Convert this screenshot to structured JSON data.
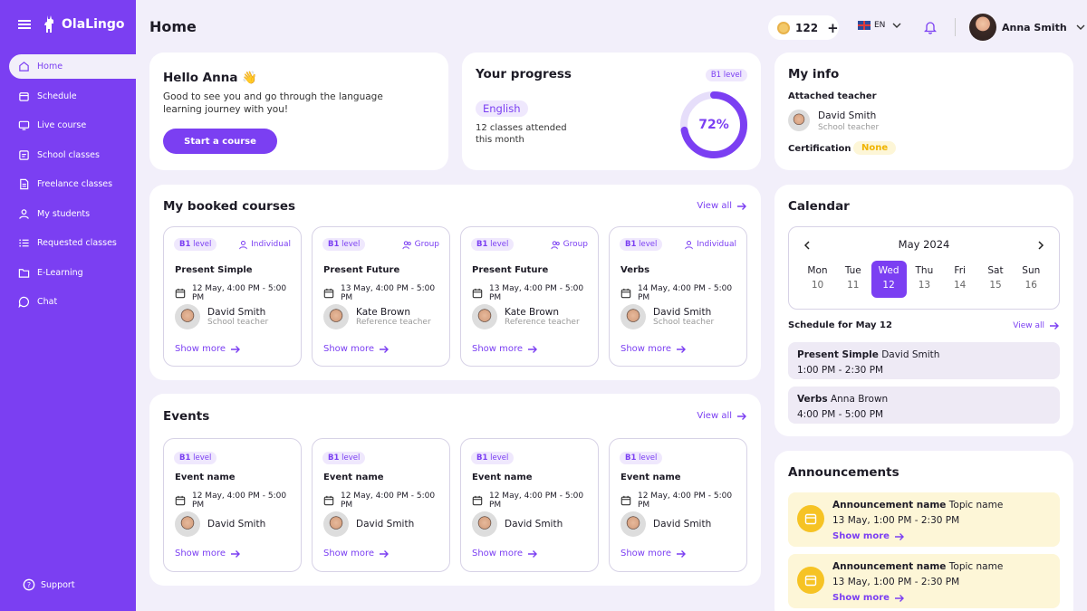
{
  "app": {
    "logo": "OlaLingo",
    "page_title": "Home"
  },
  "sidebar": {
    "items": [
      {
        "label": "Home"
      },
      {
        "label": "Schedule"
      },
      {
        "label": "Live course"
      },
      {
        "label": "School classes"
      },
      {
        "label": "Freelance classes"
      },
      {
        "label": "My students"
      },
      {
        "label": "Requested classes"
      },
      {
        "label": "E-Learning"
      },
      {
        "label": "Chat"
      }
    ],
    "support": "Support"
  },
  "topbar": {
    "coins": "122",
    "plus": "+",
    "language": "EN",
    "user_name": "Anna Smith"
  },
  "hello": {
    "title": "Hello Anna 👋",
    "text": "Good to see you and go through the language learning journey with you!",
    "button": "Start a course"
  },
  "progress": {
    "title": "Your progress",
    "level": "B1 level",
    "language": "English",
    "classes": "12 classes attended this month",
    "percent_label": "72%",
    "percent": 0.72
  },
  "myinfo": {
    "title": "My info",
    "attached_label": "Attached teacher",
    "teacher_name": "David Smith",
    "teacher_role": "School teacher",
    "cert_label": "Certification",
    "cert_value": "None"
  },
  "booked": {
    "title": "My booked courses",
    "view_all": "View all",
    "courses": [
      {
        "level": "B1",
        "level_suffix": "level",
        "type": "Individual",
        "title": "Present Simple",
        "date": "12 May, 4:00 PM - 5:00 PM",
        "name": "David Smith",
        "role": "School teacher",
        "more": "Show more"
      },
      {
        "level": "B1",
        "level_suffix": "level",
        "type": "Group",
        "title": "Present Future",
        "date": "13 May, 4:00 PM - 5:00 PM",
        "name": "Kate Brown",
        "role": "Reference teacher",
        "more": "Show more"
      },
      {
        "level": "B1",
        "level_suffix": "level",
        "type": "Group",
        "title": "Present Future",
        "date": "13 May, 4:00 PM - 5:00 PM",
        "name": "Kate Brown",
        "role": "Reference teacher",
        "more": "Show more"
      },
      {
        "level": "B1",
        "level_suffix": "level",
        "type": "Individual",
        "title": "Verbs",
        "date": "14 May, 4:00 PM - 5:00 PM",
        "name": "David Smith",
        "role": "School teacher",
        "more": "Show more"
      }
    ]
  },
  "events": {
    "title": "Events",
    "view_all": "View all",
    "items": [
      {
        "level": "B1",
        "level_suffix": "level",
        "title": "Event name",
        "date": "12 May, 4:00 PM - 5:00 PM",
        "name": "David Smith",
        "more": "Show more"
      },
      {
        "level": "B1",
        "level_suffix": "level",
        "title": "Event name",
        "date": "12 May, 4:00 PM - 5:00 PM",
        "name": "David Smith",
        "more": "Show more"
      },
      {
        "level": "B1",
        "level_suffix": "level",
        "title": "Event name",
        "date": "12 May, 4:00 PM - 5:00 PM",
        "name": "David Smith",
        "more": "Show more"
      },
      {
        "level": "B1",
        "level_suffix": "level",
        "title": "Event name",
        "date": "12 May, 4:00 PM - 5:00 PM",
        "name": "David Smith",
        "more": "Show more"
      }
    ]
  },
  "calendar": {
    "title": "Calendar",
    "month": "May 2024",
    "days": [
      {
        "d": "Mon",
        "n": "10"
      },
      {
        "d": "Tue",
        "n": "11"
      },
      {
        "d": "Wed",
        "n": "12"
      },
      {
        "d": "Thu",
        "n": "13"
      },
      {
        "d": "Fri",
        "n": "14"
      },
      {
        "d": "Sat",
        "n": "15"
      },
      {
        "d": "Sun",
        "n": "16"
      }
    ],
    "schedule_title": "Schedule for May 12",
    "view_all": "View all",
    "entries": [
      {
        "title": "Present Simple",
        "name": "David Smith",
        "time": "1:00 PM - 2:30 PM"
      },
      {
        "title": "Verbs",
        "name": "Anna Brown",
        "time": "4:00 PM - 5:00 PM"
      }
    ]
  },
  "announcements": {
    "title": "Announcements",
    "items": [
      {
        "name": "Announcement name",
        "topic": "Topic name",
        "date": "13 May,  1:00 PM - 2:30 PM",
        "more": "Show more"
      },
      {
        "name": "Announcement name",
        "topic": "Topic name",
        "date": "13 May,  1:00 PM - 2:30 PM",
        "more": "Show more"
      }
    ]
  },
  "colors": {
    "accent": "#7b3ff2",
    "background": "#f2effa",
    "announcement": "#fdf6d7",
    "cert_badge": "#fdf6d7"
  }
}
